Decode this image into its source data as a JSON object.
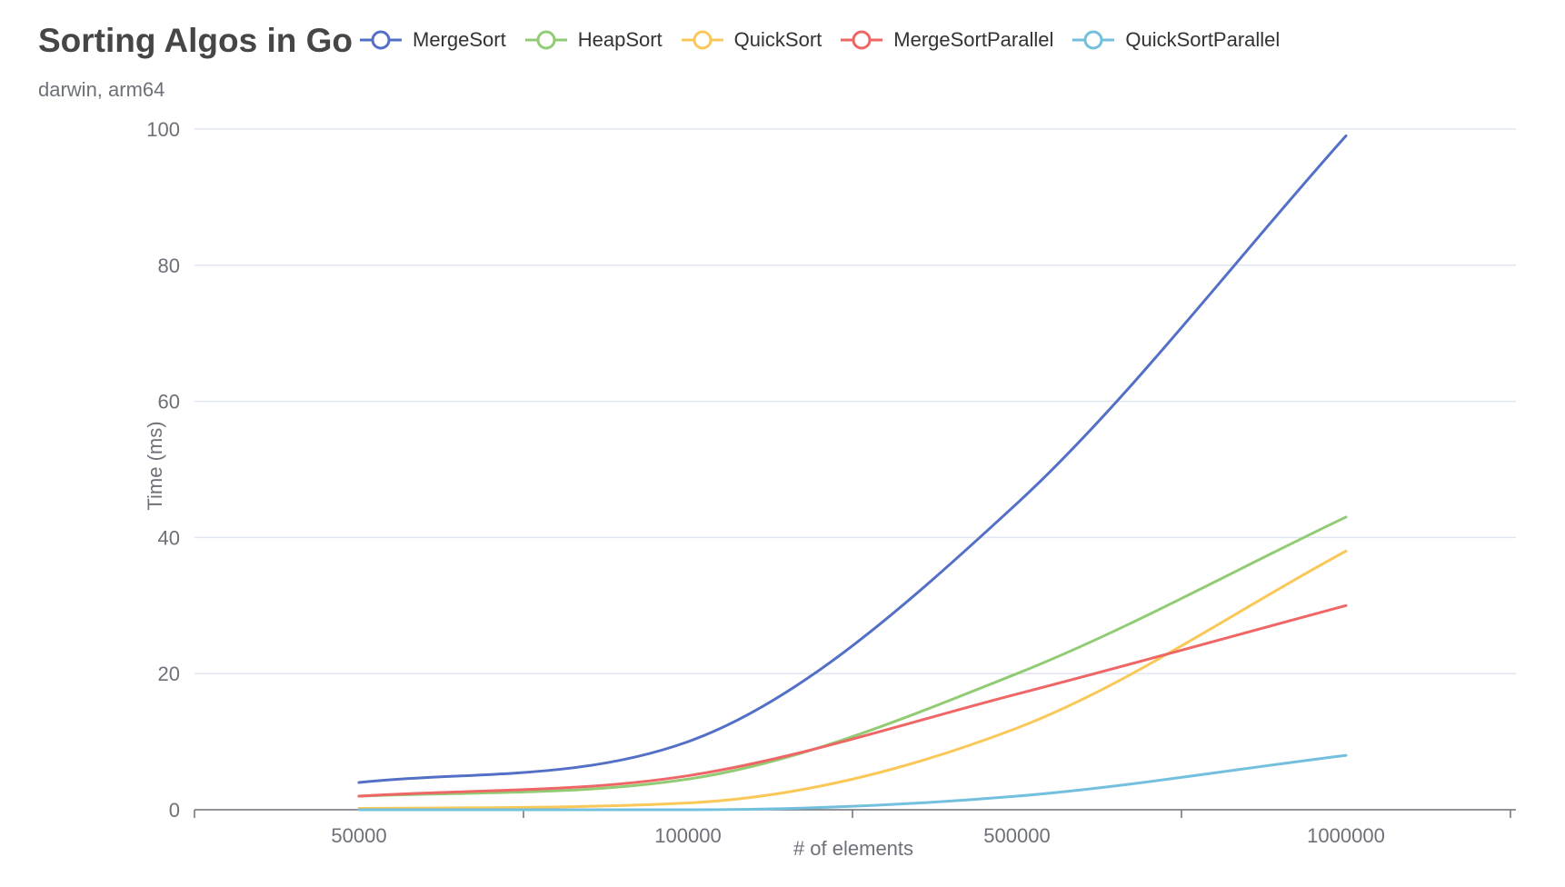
{
  "chart_data": {
    "type": "line",
    "title": "Sorting Algos in Go",
    "subtitle": "darwin, arm64",
    "xlabel": "# of elements",
    "ylabel": "Time (ms)",
    "categories": [
      "50000",
      "100000",
      "500000",
      "1000000"
    ],
    "ylim": [
      0,
      100
    ],
    "yticks": [
      0,
      20,
      40,
      60,
      80,
      100
    ],
    "grid": true,
    "legend_position": "top",
    "smooth": true,
    "series": [
      {
        "name": "MergeSort",
        "color": "#5470c6",
        "values": [
          4,
          10,
          45,
          99
        ]
      },
      {
        "name": "HeapSort",
        "color": "#91cc75",
        "values": [
          2,
          4.5,
          20,
          43
        ]
      },
      {
        "name": "QuickSort",
        "color": "#fac858",
        "values": [
          0.2,
          1,
          12,
          38
        ]
      },
      {
        "name": "MergeSortParallel",
        "color": "#ee6666",
        "values": [
          2,
          5,
          17,
          30
        ]
      },
      {
        "name": "QuickSortParallel",
        "color": "#73c0de",
        "values": [
          0,
          0,
          2,
          8
        ]
      }
    ]
  }
}
